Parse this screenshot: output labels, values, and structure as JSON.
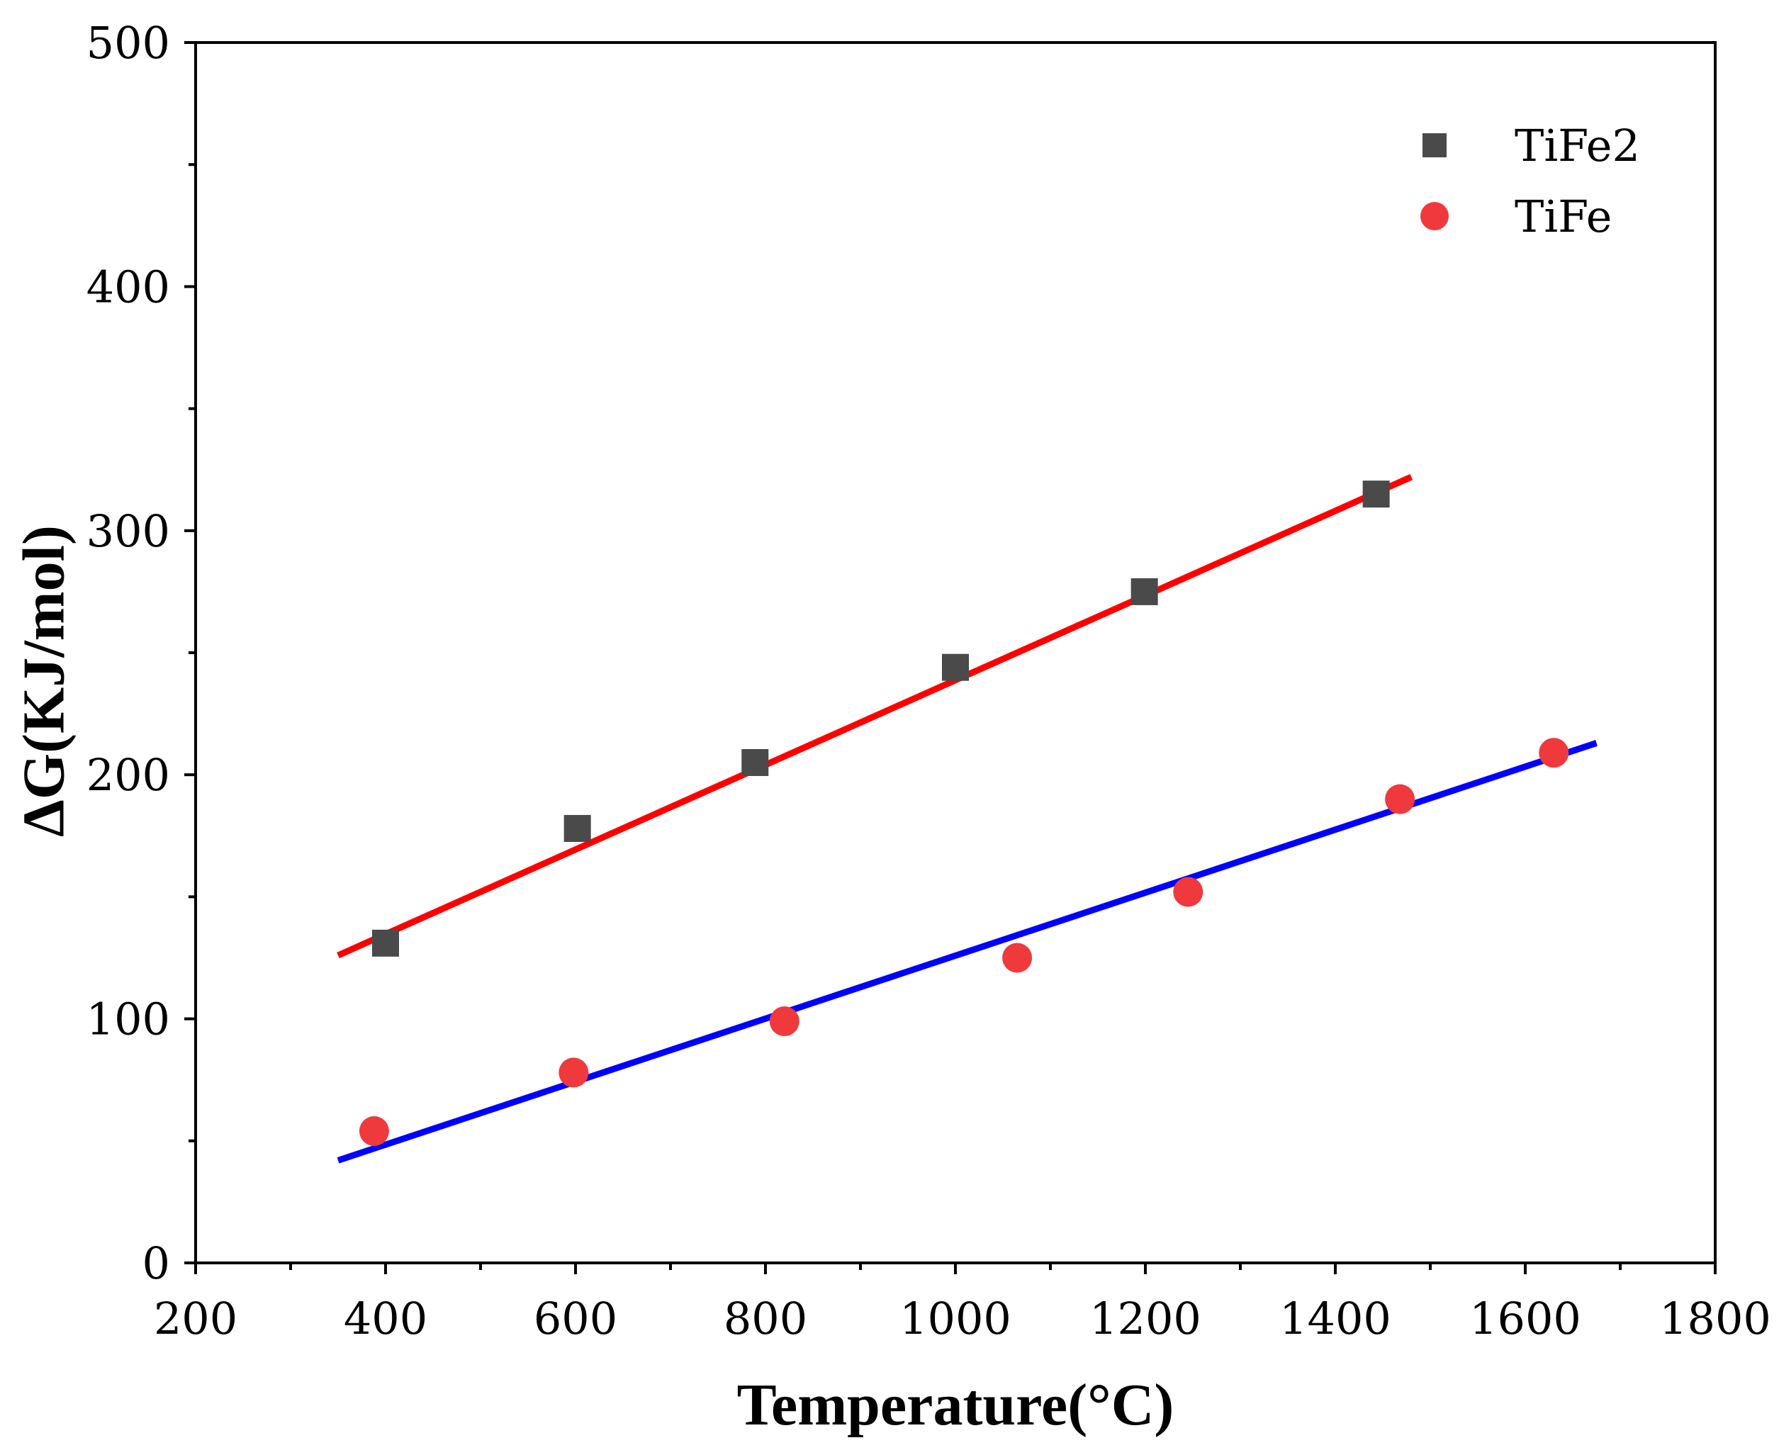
{
  "chart_data": {
    "type": "scatter",
    "title": "",
    "xlabel": "Temperature(°C)",
    "ylabel": "ΔG(KJ/mol)",
    "xlim": [
      200,
      1800
    ],
    "ylim": [
      0,
      500
    ],
    "x_major_ticks": [
      200,
      400,
      600,
      800,
      1000,
      1200,
      1400,
      1600,
      1800
    ],
    "x_minor_ticks": [
      300,
      500,
      700,
      900,
      1100,
      1300,
      1500,
      1700
    ],
    "y_major_ticks": [
      0,
      100,
      200,
      300,
      400,
      500
    ],
    "y_minor_ticks": [
      50,
      150,
      250,
      350,
      450
    ],
    "grid": false,
    "legend_position": "top-right",
    "series": [
      {
        "name": "TiFe2",
        "marker": "square",
        "color": "#4a4a4a",
        "points": [
          {
            "x": 400,
            "y": 131
          },
          {
            "x": 602,
            "y": 178
          },
          {
            "x": 789,
            "y": 205
          },
          {
            "x": 1000,
            "y": 244
          },
          {
            "x": 1199,
            "y": 275
          },
          {
            "x": 1443,
            "y": 315
          }
        ],
        "fit": {
          "color": "#ff0000",
          "x": [
            350,
            1480
          ],
          "y": [
            126,
            322
          ]
        }
      },
      {
        "name": "TiFe",
        "marker": "circle",
        "color": "#f0393c",
        "points": [
          {
            "x": 388,
            "y": 54
          },
          {
            "x": 598,
            "y": 78
          },
          {
            "x": 820,
            "y": 99
          },
          {
            "x": 1065,
            "y": 125
          },
          {
            "x": 1245,
            "y": 152
          },
          {
            "x": 1468,
            "y": 190
          },
          {
            "x": 1630,
            "y": 209
          }
        ],
        "fit": {
          "color": "#0000ff",
          "x": [
            350,
            1675
          ],
          "y": [
            42,
            213
          ]
        }
      }
    ]
  }
}
